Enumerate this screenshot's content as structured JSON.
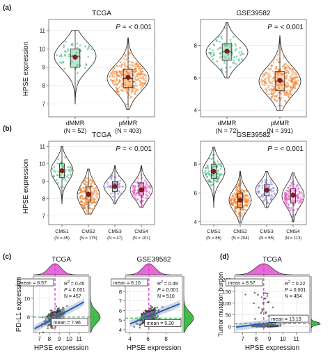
{
  "panel_labels": [
    "(a)",
    "(b)",
    "(c)",
    "(d)"
  ],
  "ylabel_hpse": "HPSE expression",
  "colors": {
    "dmmr": "#3cb371",
    "pmmr": "#f07f2a",
    "cms1": "#3cb371",
    "cms2": "#f07f2a",
    "cms3": "#8a7fd0",
    "cms4": "#e14fc0",
    "mean_point": "#8b1a1a",
    "fit": "#1f5fbf",
    "x_density": "#e04fd0",
    "y_density": "#22b22a",
    "mean_x_line": "#d62fd0",
    "mean_y_line": "#2db83a"
  },
  "chart_data": [
    {
      "id": "a-tcga",
      "type": "violin",
      "title": "TCGA",
      "annotation": "P = < 0.001",
      "ylabel": "HPSE expression",
      "ylim": [
        6.3,
        11.6
      ],
      "yticks": [
        7,
        8,
        9,
        10,
        11
      ],
      "categories": [
        "dMMR\n(N = 52)",
        "pMMR\n(N = 403)"
      ],
      "series": [
        {
          "n": 52,
          "min": 7.0,
          "q1": 9.0,
          "median": 9.6,
          "q3": 10.0,
          "max": 11.0,
          "mean": 9.55
        },
        {
          "n": 403,
          "min": 6.7,
          "q1": 7.9,
          "median": 8.4,
          "q3": 8.9,
          "max": 10.6,
          "mean": 8.45
        }
      ]
    },
    {
      "id": "a-gse",
      "type": "violin",
      "title": "GSE39582",
      "annotation": "P = < 0.001",
      "ylabel": "",
      "ylim": [
        3.6,
        9.6
      ],
      "yticks": [
        4,
        6,
        8
      ],
      "categories": [
        "dMMR\n(N = 72)",
        "pMMR\n(N = 391)"
      ],
      "series": [
        {
          "n": 72,
          "min": 6.0,
          "q1": 7.1,
          "median": 7.6,
          "q3": 8.1,
          "max": 9.4,
          "mean": 7.65
        },
        {
          "n": 391,
          "min": 4.0,
          "q1": 5.2,
          "median": 5.8,
          "q3": 6.4,
          "max": 8.6,
          "mean": 5.85
        }
      ]
    },
    {
      "id": "b-tcga",
      "type": "violin",
      "title": "TCGA",
      "annotation": "P = < 0.001",
      "ylabel": "HPSE expression",
      "ylim": [
        6.5,
        11.3
      ],
      "yticks": [
        7,
        8,
        9,
        10,
        11
      ],
      "categories": [
        "CMS1\n(N = 45)",
        "CMS2\n(N = 175)",
        "CMS3\n(N = 47)",
        "CMS4\n(N = 101)"
      ],
      "series": [
        {
          "n": 45,
          "min": 7.7,
          "q1": 9.2,
          "median": 9.6,
          "q3": 10.0,
          "max": 11.0,
          "mean": 9.6
        },
        {
          "n": 175,
          "min": 7.1,
          "q1": 7.8,
          "median": 8.2,
          "q3": 8.7,
          "max": 9.7,
          "mean": 8.25
        },
        {
          "n": 47,
          "min": 7.7,
          "q1": 8.4,
          "median": 8.7,
          "q3": 9.0,
          "max": 9.9,
          "mean": 8.7
        },
        {
          "n": 101,
          "min": 7.5,
          "q1": 8.2,
          "median": 8.5,
          "q3": 8.9,
          "max": 9.9,
          "mean": 8.5
        }
      ]
    },
    {
      "id": "b-gse",
      "type": "violin",
      "title": "GSE39582",
      "annotation": "P = < 0.001",
      "ylabel": "",
      "ylim": [
        3.8,
        9.6
      ],
      "yticks": [
        4,
        6,
        8
      ],
      "categories": [
        "CMS1\n(N = 86)",
        "CMS2\n(N = 204)",
        "CMS3\n(N = 65)",
        "CMS4\n(N = 113)"
      ],
      "series": [
        {
          "n": 86,
          "min": 5.0,
          "q1": 7.0,
          "median": 7.5,
          "q3": 8.0,
          "max": 9.2,
          "mean": 7.5
        },
        {
          "n": 204,
          "min": 3.9,
          "q1": 5.0,
          "median": 5.5,
          "q3": 6.0,
          "max": 7.5,
          "mean": 5.5
        },
        {
          "n": 65,
          "min": 5.0,
          "q1": 5.8,
          "median": 6.2,
          "q3": 6.6,
          "max": 7.5,
          "mean": 6.2
        },
        {
          "n": 113,
          "min": 4.0,
          "q1": 5.3,
          "median": 5.8,
          "q3": 6.3,
          "max": 7.4,
          "mean": 5.85
        }
      ]
    },
    {
      "id": "c-tcga",
      "type": "scatter",
      "title": "TCGA",
      "xlabel": "HPSE expression",
      "ylabel": "PD-L1 expression",
      "xlim": [
        6.4,
        12.0
      ],
      "ylim": [
        6.3,
        12.4
      ],
      "xticks": [
        7,
        8,
        9,
        10,
        11
      ],
      "yticks": [
        8,
        10,
        12
      ],
      "stats": {
        "R2": "0.45",
        "P": "0.001",
        "N": "457"
      },
      "mean_x_label": "mean = 8.57",
      "mean_y_label": "mean = 7.96",
      "mean_x": 8.57,
      "mean_y": 7.96,
      "fit": {
        "x": [
          6.5,
          11.5
        ],
        "y": [
          6.7,
          9.6
        ]
      },
      "n_points": 457
    },
    {
      "id": "c-gse",
      "type": "scatter",
      "title": "GSE39582",
      "xlabel": "HPSE expression",
      "ylabel": "",
      "xlim": [
        3.5,
        9.8
      ],
      "ylim": [
        3.7,
        9.6
      ],
      "xticks": [
        4,
        6,
        8
      ],
      "yticks": [
        4,
        5,
        6,
        7,
        8,
        9
      ],
      "stats": {
        "R2": "0.49",
        "P": "0.001",
        "N": "510"
      },
      "mean_x_label": "mean = 6.10",
      "mean_y_label": "mean = 5.20",
      "mean_x": 6.1,
      "mean_y": 5.2,
      "fit": {
        "x": [
          4.0,
          9.5
        ],
        "y": [
          4.6,
          6.7
        ]
      },
      "n_points": 510
    },
    {
      "id": "d-tcga",
      "type": "scatter",
      "title": "TCGA",
      "xlabel": "HPSE expression",
      "ylabel": "Tumor mutation burden",
      "xlim": [
        6.4,
        12.0
      ],
      "ylim": [
        -25,
        215
      ],
      "xticks": [
        7,
        8,
        9,
        10,
        11
      ],
      "yticks": [
        0,
        50,
        100,
        150,
        200
      ],
      "stats": {
        "R2": "0.22",
        "P": "0.001",
        "N": "454"
      },
      "mean_x_label": "mean = 8.57",
      "mean_y_label": "mean = 13.19",
      "mean_x": 8.57,
      "mean_y": 13.19,
      "fit": {
        "x": [
          6.5,
          11.5
        ],
        "y": [
          -2,
          34
        ]
      },
      "n_points": 454
    }
  ]
}
